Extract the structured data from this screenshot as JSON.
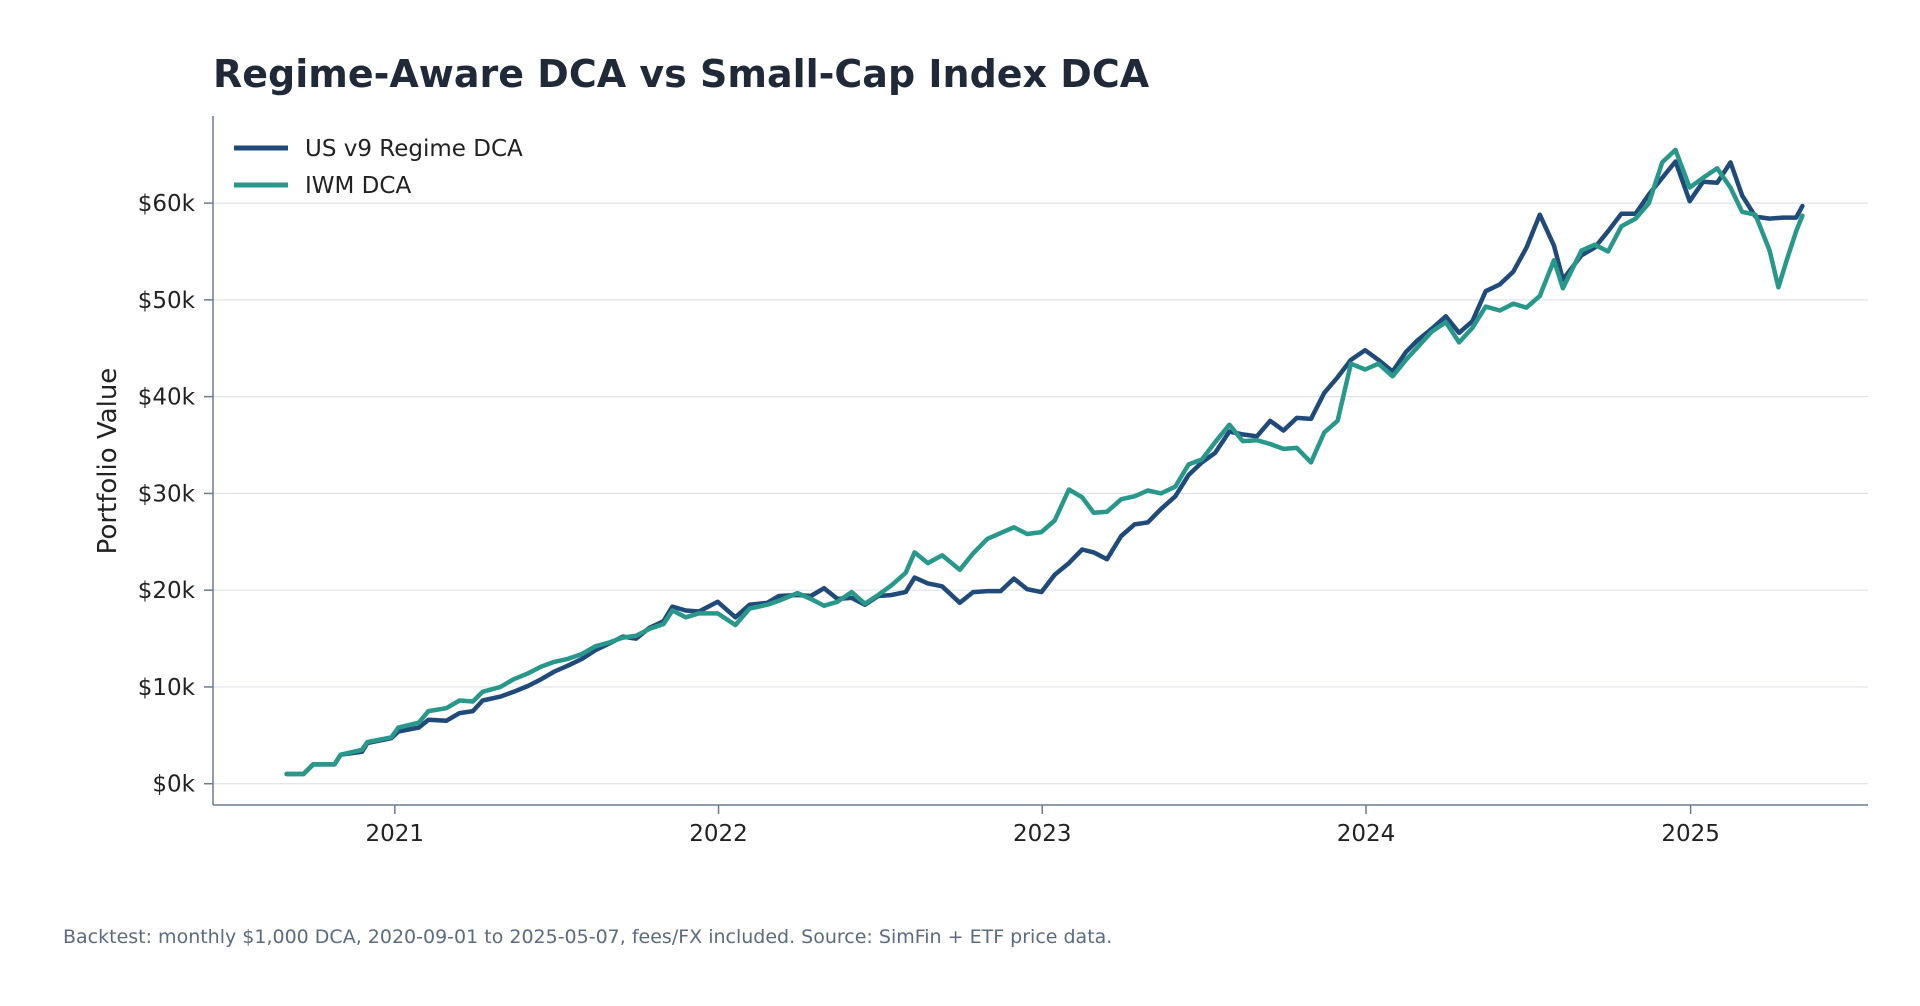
{
  "chart_data": {
    "type": "line",
    "title": "Regime-Aware DCA vs Small-Cap Index DCA",
    "xlabel": "",
    "ylabel": "Portfolio Value",
    "footnote": "Backtest: monthly $1,000 DCA, 2020-09-01 to 2025-05-07, fees/FX included. Source: SimFin + ETF price data.",
    "x_ticks": [
      "2021",
      "2022",
      "2023",
      "2024",
      "2025"
    ],
    "y_ticks": [
      {
        "value": 0,
        "label": "$0k"
      },
      {
        "value": 10000,
        "label": "$10k"
      },
      {
        "value": 20000,
        "label": "$20k"
      },
      {
        "value": 30000,
        "label": "$30k"
      },
      {
        "value": 40000,
        "label": "$40k"
      },
      {
        "value": 50000,
        "label": "$50k"
      },
      {
        "value": 60000,
        "label": "$60k"
      }
    ],
    "xlim": [
      "2020-06-10",
      "2025-07-20"
    ],
    "ylim": [
      -2200,
      69000
    ],
    "grid": "y",
    "legend_position": "top-left",
    "series": [
      {
        "name": "US v9 Regime DCA",
        "color": "#1f4a7a",
        "points": [
          [
            "2020-09-01",
            1000
          ],
          [
            "2020-09-20",
            1000
          ],
          [
            "2020-10-01",
            2000
          ],
          [
            "2020-10-25",
            2000
          ],
          [
            "2020-11-01",
            3000
          ],
          [
            "2020-11-25",
            3300
          ],
          [
            "2020-12-01",
            4200
          ],
          [
            "2020-12-28",
            4700
          ],
          [
            "2021-01-05",
            5400
          ],
          [
            "2021-01-28",
            5800
          ],
          [
            "2021-02-08",
            6600
          ],
          [
            "2021-02-28",
            6500
          ],
          [
            "2021-03-15",
            7300
          ],
          [
            "2021-03-30",
            7500
          ],
          [
            "2021-04-10",
            8600
          ],
          [
            "2021-04-30",
            9000
          ],
          [
            "2021-05-15",
            9500
          ],
          [
            "2021-05-31",
            10100
          ],
          [
            "2021-06-15",
            10800
          ],
          [
            "2021-06-30",
            11600
          ],
          [
            "2021-07-15",
            12200
          ],
          [
            "2021-07-31",
            12900
          ],
          [
            "2021-08-15",
            13800
          ],
          [
            "2021-08-31",
            14500
          ],
          [
            "2021-09-15",
            15200
          ],
          [
            "2021-09-30",
            15000
          ],
          [
            "2021-10-15",
            16100
          ],
          [
            "2021-10-31",
            16800
          ],
          [
            "2021-11-10",
            18300
          ],
          [
            "2021-11-25",
            17900
          ],
          [
            "2021-12-10",
            17800
          ],
          [
            "2021-12-31",
            18800
          ],
          [
            "2022-01-20",
            17200
          ],
          [
            "2022-02-05",
            18500
          ],
          [
            "2022-02-25",
            18700
          ],
          [
            "2022-03-10",
            19400
          ],
          [
            "2022-03-31",
            19500
          ],
          [
            "2022-04-15",
            19400
          ],
          [
            "2022-04-30",
            20200
          ],
          [
            "2022-05-15",
            19100
          ],
          [
            "2022-05-31",
            19200
          ],
          [
            "2022-06-15",
            18500
          ],
          [
            "2022-06-30",
            19400
          ],
          [
            "2022-07-15",
            19500
          ],
          [
            "2022-07-31",
            19800
          ],
          [
            "2022-08-10",
            21300
          ],
          [
            "2022-08-25",
            20700
          ],
          [
            "2022-09-10",
            20400
          ],
          [
            "2022-09-30",
            18700
          ],
          [
            "2022-10-15",
            19800
          ],
          [
            "2022-10-31",
            19900
          ],
          [
            "2022-11-15",
            19900
          ],
          [
            "2022-11-30",
            21200
          ],
          [
            "2022-12-15",
            20100
          ],
          [
            "2022-12-31",
            19800
          ],
          [
            "2023-01-15",
            21600
          ],
          [
            "2023-01-31",
            22800
          ],
          [
            "2023-02-15",
            24200
          ],
          [
            "2023-02-28",
            23900
          ],
          [
            "2023-03-15",
            23200
          ],
          [
            "2023-03-31",
            25600
          ],
          [
            "2023-04-15",
            26800
          ],
          [
            "2023-04-30",
            27000
          ],
          [
            "2023-05-15",
            28400
          ],
          [
            "2023-05-31",
            29700
          ],
          [
            "2023-06-15",
            31900
          ],
          [
            "2023-06-30",
            33200
          ],
          [
            "2023-07-15",
            34200
          ],
          [
            "2023-07-31",
            36400
          ],
          [
            "2023-08-15",
            36100
          ],
          [
            "2023-08-31",
            35900
          ],
          [
            "2023-09-15",
            37500
          ],
          [
            "2023-09-30",
            36500
          ],
          [
            "2023-10-15",
            37800
          ],
          [
            "2023-10-31",
            37700
          ],
          [
            "2023-11-15",
            40400
          ],
          [
            "2023-11-30",
            42000
          ],
          [
            "2023-12-15",
            43800
          ],
          [
            "2023-12-31",
            44800
          ],
          [
            "2024-01-15",
            43800
          ],
          [
            "2024-01-31",
            42600
          ],
          [
            "2024-02-15",
            44600
          ],
          [
            "2024-02-28",
            45800
          ],
          [
            "2024-03-15",
            47000
          ],
          [
            "2024-03-31",
            48300
          ],
          [
            "2024-04-15",
            46600
          ],
          [
            "2024-04-30",
            47800
          ],
          [
            "2024-05-15",
            50900
          ],
          [
            "2024-05-31",
            51600
          ],
          [
            "2024-06-15",
            52900
          ],
          [
            "2024-06-30",
            55400
          ],
          [
            "2024-07-15",
            58800
          ],
          [
            "2024-07-31",
            55600
          ],
          [
            "2024-08-10",
            52100
          ],
          [
            "2024-08-31",
            54600
          ],
          [
            "2024-09-15",
            55400
          ],
          [
            "2024-09-30",
            57100
          ],
          [
            "2024-10-15",
            58900
          ],
          [
            "2024-10-31",
            58900
          ],
          [
            "2024-11-15",
            60900
          ],
          [
            "2024-11-30",
            62600
          ],
          [
            "2024-12-15",
            64300
          ],
          [
            "2024-12-31",
            60200
          ],
          [
            "2025-01-15",
            62200
          ],
          [
            "2025-01-31",
            62100
          ],
          [
            "2025-02-15",
            64200
          ],
          [
            "2025-02-28",
            60800
          ],
          [
            "2025-03-15",
            58600
          ],
          [
            "2025-03-31",
            58400
          ],
          [
            "2025-04-15",
            58500
          ],
          [
            "2025-04-30",
            58500
          ],
          [
            "2025-05-07",
            59700
          ]
        ]
      },
      {
        "name": "IWM DCA",
        "color": "#27988a",
        "points": [
          [
            "2020-09-01",
            1000
          ],
          [
            "2020-09-20",
            1000
          ],
          [
            "2020-10-01",
            2000
          ],
          [
            "2020-10-25",
            2000
          ],
          [
            "2020-11-01",
            3000
          ],
          [
            "2020-11-25",
            3500
          ],
          [
            "2020-12-01",
            4300
          ],
          [
            "2020-12-28",
            4800
          ],
          [
            "2021-01-05",
            5800
          ],
          [
            "2021-01-28",
            6300
          ],
          [
            "2021-02-08",
            7500
          ],
          [
            "2021-02-28",
            7800
          ],
          [
            "2021-03-15",
            8600
          ],
          [
            "2021-03-30",
            8500
          ],
          [
            "2021-04-10",
            9500
          ],
          [
            "2021-04-30",
            10000
          ],
          [
            "2021-05-15",
            10800
          ],
          [
            "2021-05-31",
            11400
          ],
          [
            "2021-06-15",
            12100
          ],
          [
            "2021-06-30",
            12600
          ],
          [
            "2021-07-15",
            12900
          ],
          [
            "2021-07-31",
            13400
          ],
          [
            "2021-08-15",
            14200
          ],
          [
            "2021-08-31",
            14600
          ],
          [
            "2021-09-15",
            15100
          ],
          [
            "2021-09-30",
            15300
          ],
          [
            "2021-10-15",
            16000
          ],
          [
            "2021-10-31",
            16500
          ],
          [
            "2021-11-10",
            17900
          ],
          [
            "2021-11-25",
            17200
          ],
          [
            "2021-12-10",
            17600
          ],
          [
            "2021-12-31",
            17600
          ],
          [
            "2022-01-20",
            16400
          ],
          [
            "2022-02-05",
            18100
          ],
          [
            "2022-02-25",
            18500
          ],
          [
            "2022-03-10",
            18900
          ],
          [
            "2022-03-31",
            19700
          ],
          [
            "2022-04-15",
            19100
          ],
          [
            "2022-04-30",
            18400
          ],
          [
            "2022-05-15",
            18800
          ],
          [
            "2022-05-31",
            19800
          ],
          [
            "2022-06-15",
            18600
          ],
          [
            "2022-06-30",
            19500
          ],
          [
            "2022-07-15",
            20500
          ],
          [
            "2022-07-31",
            21800
          ],
          [
            "2022-08-10",
            23900
          ],
          [
            "2022-08-25",
            22800
          ],
          [
            "2022-09-10",
            23600
          ],
          [
            "2022-09-30",
            22100
          ],
          [
            "2022-10-15",
            23800
          ],
          [
            "2022-10-31",
            25300
          ],
          [
            "2022-11-15",
            25900
          ],
          [
            "2022-11-30",
            26500
          ],
          [
            "2022-12-15",
            25800
          ],
          [
            "2022-12-31",
            26000
          ],
          [
            "2023-01-15",
            27200
          ],
          [
            "2023-01-31",
            30400
          ],
          [
            "2023-02-15",
            29600
          ],
          [
            "2023-02-28",
            28000
          ],
          [
            "2023-03-15",
            28100
          ],
          [
            "2023-03-31",
            29400
          ],
          [
            "2023-04-15",
            29700
          ],
          [
            "2023-04-30",
            30300
          ],
          [
            "2023-05-15",
            30000
          ],
          [
            "2023-05-31",
            30700
          ],
          [
            "2023-06-15",
            33000
          ],
          [
            "2023-06-30",
            33500
          ],
          [
            "2023-07-15",
            35300
          ],
          [
            "2023-07-31",
            37100
          ],
          [
            "2023-08-15",
            35400
          ],
          [
            "2023-08-31",
            35500
          ],
          [
            "2023-09-15",
            35100
          ],
          [
            "2023-09-30",
            34600
          ],
          [
            "2023-10-15",
            34700
          ],
          [
            "2023-10-31",
            33200
          ],
          [
            "2023-11-15",
            36300
          ],
          [
            "2023-11-30",
            37500
          ],
          [
            "2023-12-15",
            43400
          ],
          [
            "2023-12-31",
            42800
          ],
          [
            "2024-01-15",
            43400
          ],
          [
            "2024-01-31",
            42100
          ],
          [
            "2024-02-15",
            43800
          ],
          [
            "2024-02-28",
            45100
          ],
          [
            "2024-03-15",
            46700
          ],
          [
            "2024-03-31",
            47700
          ],
          [
            "2024-04-15",
            45600
          ],
          [
            "2024-04-30",
            47100
          ],
          [
            "2024-05-15",
            49300
          ],
          [
            "2024-05-31",
            48900
          ],
          [
            "2024-06-15",
            49600
          ],
          [
            "2024-06-30",
            49200
          ],
          [
            "2024-07-15",
            50400
          ],
          [
            "2024-07-31",
            54100
          ],
          [
            "2024-08-10",
            51200
          ],
          [
            "2024-08-31",
            55100
          ],
          [
            "2024-09-15",
            55700
          ],
          [
            "2024-09-30",
            55000
          ],
          [
            "2024-10-15",
            57600
          ],
          [
            "2024-10-31",
            58400
          ],
          [
            "2024-11-15",
            60000
          ],
          [
            "2024-11-30",
            64200
          ],
          [
            "2024-12-15",
            65500
          ],
          [
            "2024-12-31",
            61600
          ],
          [
            "2025-01-15",
            62600
          ],
          [
            "2025-01-31",
            63600
          ],
          [
            "2025-02-15",
            61600
          ],
          [
            "2025-02-28",
            59100
          ],
          [
            "2025-03-15",
            58800
          ],
          [
            "2025-03-31",
            55100
          ],
          [
            "2025-04-10",
            51300
          ],
          [
            "2025-04-20",
            54300
          ],
          [
            "2025-04-30",
            57100
          ],
          [
            "2025-05-07",
            58700
          ]
        ]
      }
    ]
  }
}
